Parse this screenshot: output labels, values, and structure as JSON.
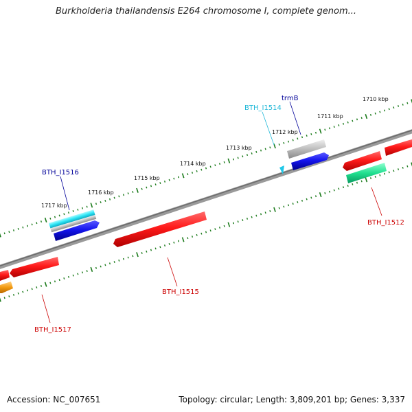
{
  "title": "Burkholderia thailandensis E264 chromosome I, complete genom...",
  "accession": "Accession: NC_007651",
  "summary": "Topology: circular; Length: 3,809,201 bp; Genes: 3,337",
  "colors": {
    "backbone": "#808080",
    "tick": "#1a7a1a",
    "red": "#e81010",
    "blue": "#1010e0",
    "cyan": "#20e0f0",
    "gray": "#b8b8b8",
    "green": "#20e090",
    "orange": "#f39a10",
    "label_blue": "#000099",
    "label_cyan": "#20b8d8",
    "label_red": "#cc0000"
  },
  "kbp_ticks": [
    "1710 kbp",
    "1711 kbp",
    "1712 kbp",
    "1713 kbp",
    "1714 kbp",
    "1715 kbp",
    "1716 kbp",
    "1717 kbp"
  ],
  "gene_labels": [
    {
      "name": "trmB",
      "color": "label_blue"
    },
    {
      "name": "BTH_I1514",
      "color": "label_cyan"
    },
    {
      "name": "BTH_I1516",
      "color": "label_blue"
    },
    {
      "name": "BTH_I1512",
      "color": "label_red"
    },
    {
      "name": "BTH_I1515",
      "color": "label_red"
    },
    {
      "name": "BTH_I1517",
      "color": "label_red"
    }
  ]
}
